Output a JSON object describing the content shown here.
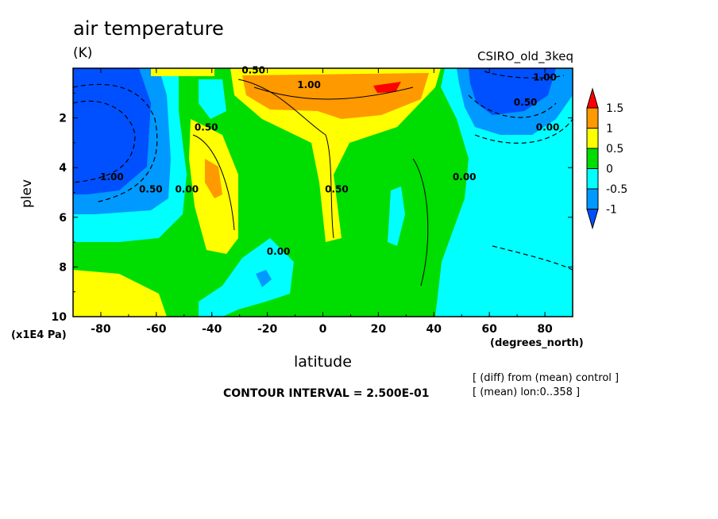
{
  "chart_data": {
    "type": "heatmap",
    "title": "air temperature",
    "units": "(K)",
    "dataset": "CSIRO_old_3keq",
    "xlabel": "latitude",
    "x_units": "(degrees_north)",
    "ylabel": "plev",
    "y_units": "(x1E4 Pa)",
    "xlim": [
      -90,
      90
    ],
    "ylim": [
      10,
      0
    ],
    "x_ticks": [
      "-80",
      "-60",
      "-40",
      "-20",
      "0",
      "20",
      "40",
      "60",
      "80"
    ],
    "x_tick_values": [
      -80,
      -60,
      -40,
      -20,
      0,
      20,
      40,
      60,
      80
    ],
    "y_ticks": [
      "2",
      "4",
      "6",
      "8",
      "10"
    ],
    "y_tick_values": [
      2,
      4,
      6,
      8,
      10
    ],
    "contour_interval": "CONTOUR INTERVAL = 2.500E-01",
    "notes": [
      "[ (diff) from (mean) control ]",
      "[ (mean) lon:0..358 ]"
    ],
    "colorbar": {
      "labels": [
        "1.5",
        "1",
        "0.5",
        "0",
        "-0.5",
        "-1"
      ],
      "levels": [
        1.5,
        1,
        0.5,
        0,
        -0.5,
        -1
      ],
      "colors": [
        "#ff0000",
        "#ff9900",
        "#ffff00",
        "#00dd00",
        "#00ffff",
        "#0099ff",
        "#0050ff"
      ]
    },
    "contour_labels": [
      {
        "text": "0.50",
        "lat": -25,
        "plev": 0.2
      },
      {
        "text": "1.00",
        "lat": -5,
        "plev": 0.8
      },
      {
        "text": "0.50",
        "lat": -42,
        "plev": 2.5
      },
      {
        "text": "1.00",
        "lat": -76,
        "plev": 4.5
      },
      {
        "text": "0.50",
        "lat": -62,
        "plev": 5.0
      },
      {
        "text": "0.00",
        "lat": -49,
        "plev": 5.0
      },
      {
        "text": "0.50",
        "lat": 5,
        "plev": 5.0
      },
      {
        "text": "0.00",
        "lat": -16,
        "plev": 7.5
      },
      {
        "text": "0.00",
        "lat": 51,
        "plev": 4.5
      },
      {
        "text": "0.50",
        "lat": 73,
        "plev": 1.5
      },
      {
        "text": "1.00",
        "lat": 80,
        "plev": 0.5
      },
      {
        "text": "0.00",
        "lat": 81,
        "plev": 2.5
      }
    ],
    "regions": [
      {
        "name": "north-pole-cold-core",
        "value": -1.0
      },
      {
        "name": "south-pole-cold-core",
        "value": -1.0
      },
      {
        "name": "upper-tropical-warm",
        "value": 1.5
      },
      {
        "name": "midlat-south-warm",
        "value": 1.0
      },
      {
        "name": "north-hemisphere-cool",
        "value": -0.5
      },
      {
        "name": "tropical-warm-tongue",
        "value": 0.5
      }
    ]
  }
}
